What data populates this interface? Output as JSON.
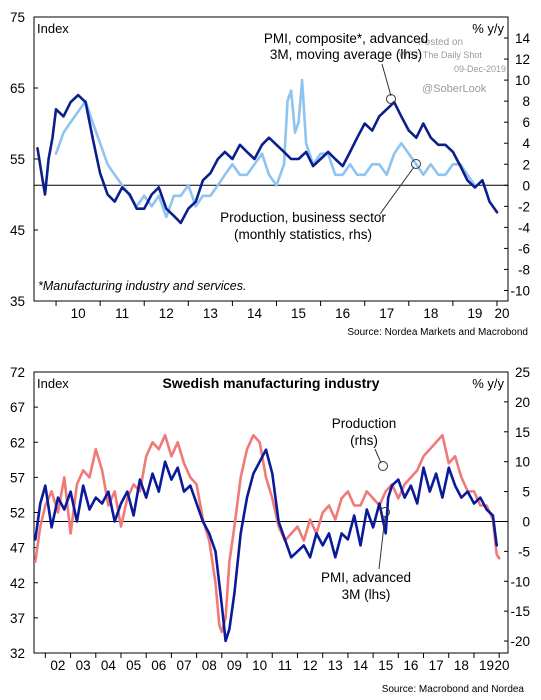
{
  "watermark": {
    "line1": "Posted on",
    "line2": "WSJ: The Daily Shot",
    "line3": "09-Dec-2019",
    "handle": "@SoberLook"
  },
  "chart_data": [
    {
      "type": "line",
      "title": "",
      "left_axis_label": "Index",
      "right_axis_label": "% y/y",
      "ylim_left": [
        35,
        75
      ],
      "ylim_right": [
        -11,
        16
      ],
      "left_ticks": [
        "35",
        "45",
        "55",
        "65",
        "75"
      ],
      "right_ticks": [
        "-10",
        "-8",
        "-6",
        "-4",
        "-2",
        "0",
        "2",
        "4",
        "6",
        "8",
        "10",
        "12",
        "14"
      ],
      "x_ticks": [
        "10",
        "11",
        "12",
        "13",
        "14",
        "15",
        "16",
        "17",
        "18",
        "19",
        "20"
      ],
      "x_range": [
        2009.5,
        2020.25
      ],
      "grid": false,
      "zero_line_rhs": 0,
      "note": "*Manufacturing industry and services.",
      "source": "Source: Nordea Markets and Macrobond",
      "annotations": [
        "PMI, composite*, advanced",
        "3M, moving average (lhs)",
        "Production, business sector",
        "(monthly statistics, rhs)"
      ],
      "series": [
        {
          "name": "PMI, composite*, advanced 3M, moving average (lhs)",
          "axis": "left",
          "color": "#0b1f8c",
          "x": [
            2009.58,
            2009.67,
            2009.75,
            2009.83,
            2009.92,
            2010.0,
            2010.17,
            2010.33,
            2010.5,
            2010.67,
            2010.83,
            2011.0,
            2011.17,
            2011.33,
            2011.5,
            2011.67,
            2011.83,
            2012.0,
            2012.17,
            2012.33,
            2012.5,
            2012.67,
            2012.83,
            2013.0,
            2013.17,
            2013.33,
            2013.5,
            2013.67,
            2013.83,
            2014.0,
            2014.17,
            2014.33,
            2014.5,
            2014.67,
            2014.83,
            2015.0,
            2015.17,
            2015.33,
            2015.5,
            2015.67,
            2015.83,
            2016.0,
            2016.17,
            2016.33,
            2016.5,
            2016.67,
            2016.83,
            2017.0,
            2017.17,
            2017.33,
            2017.5,
            2017.67,
            2017.83,
            2018.0,
            2018.17,
            2018.33,
            2018.5,
            2018.67,
            2018.83,
            2019.0,
            2019.17,
            2019.33,
            2019.5,
            2019.67,
            2019.83,
            2020.0
          ],
          "values": [
            56.5,
            53,
            50,
            55,
            58,
            62,
            61,
            63,
            64,
            63,
            58,
            53,
            50,
            49,
            51,
            50,
            48,
            48,
            50,
            51,
            48,
            47,
            46,
            48,
            49,
            52,
            53,
            55,
            56,
            55,
            57,
            56,
            55,
            57,
            58,
            57,
            56,
            55,
            55,
            56,
            54,
            55,
            56,
            55,
            54,
            56,
            58,
            60,
            59,
            61,
            62,
            63,
            61,
            59,
            58,
            60,
            58,
            57,
            57,
            56,
            54,
            52,
            51,
            52,
            49,
            47.5
          ]
        },
        {
          "name": "Production, business sector (monthly statistics, rhs)",
          "axis": "right",
          "color": "#8fc3f0",
          "x": [
            2010.0,
            2010.17,
            2010.33,
            2010.5,
            2010.67,
            2010.83,
            2011.0,
            2011.17,
            2011.33,
            2011.5,
            2011.67,
            2011.83,
            2012.0,
            2012.17,
            2012.33,
            2012.5,
            2012.67,
            2012.83,
            2013.0,
            2013.17,
            2013.33,
            2013.5,
            2013.67,
            2013.83,
            2014.0,
            2014.17,
            2014.33,
            2014.5,
            2014.67,
            2014.83,
            2015.0,
            2015.17,
            2015.25,
            2015.33,
            2015.42,
            2015.5,
            2015.58,
            2015.67,
            2015.83,
            2016.0,
            2016.17,
            2016.33,
            2016.5,
            2016.67,
            2016.83,
            2017.0,
            2017.17,
            2017.33,
            2017.5,
            2017.67,
            2017.83,
            2018.0,
            2018.17,
            2018.33,
            2018.5,
            2018.67,
            2018.83,
            2019.0,
            2019.17,
            2019.33,
            2019.5
          ],
          "values": [
            3,
            5,
            6,
            7,
            8,
            6,
            4,
            2,
            1,
            0,
            -1,
            -2,
            -1,
            -2,
            -1,
            -3,
            -1,
            -1,
            0,
            -2,
            -1,
            -1,
            0,
            1,
            2,
            1,
            1,
            2,
            3,
            1,
            0,
            2,
            8,
            9,
            5,
            6,
            10,
            4,
            2,
            3,
            3,
            1,
            1,
            2,
            1,
            1,
            2,
            2,
            1,
            3,
            4,
            3,
            2,
            1,
            2,
            1,
            1,
            2,
            2,
            1,
            0
          ]
        }
      ]
    },
    {
      "type": "line",
      "title": "Swedish manufacturing industry",
      "left_axis_label": "Index",
      "right_axis_label": "% y/y",
      "ylim_left": [
        32,
        72
      ],
      "ylim_right": [
        -22,
        25
      ],
      "left_ticks": [
        "32",
        "37",
        "42",
        "47",
        "52",
        "57",
        "62",
        "67",
        "72"
      ],
      "right_ticks": [
        "-20",
        "-15",
        "-10",
        "-5",
        "0",
        "5",
        "10",
        "15",
        "20",
        "25"
      ],
      "x_ticks": [
        "02",
        "03",
        "04",
        "05",
        "06",
        "07",
        "08",
        "09",
        "10",
        "11",
        "12",
        "13",
        "14",
        "15",
        "16",
        "17",
        "18",
        "19",
        "20"
      ],
      "x_range": [
        2001.55,
        2020.35
      ],
      "grid": false,
      "zero_line_rhs": 0,
      "source": "Source: Macrobond and Nordea",
      "annotations": [
        "Production",
        "(rhs)",
        "PMI, advanced",
        "3M (lhs)"
      ],
      "series": [
        {
          "name": "Production (rhs)",
          "axis": "right",
          "color": "#0a1a9a",
          "x": [
            2001.6,
            2001.8,
            2002.0,
            2002.25,
            2002.5,
            2002.75,
            2003.0,
            2003.25,
            2003.5,
            2003.75,
            2004.0,
            2004.25,
            2004.5,
            2004.75,
            2005.0,
            2005.25,
            2005.5,
            2005.75,
            2006.0,
            2006.25,
            2006.5,
            2006.75,
            2007.0,
            2007.25,
            2007.5,
            2007.75,
            2008.0,
            2008.25,
            2008.5,
            2008.75,
            2009.0,
            2009.15,
            2009.3,
            2009.5,
            2009.75,
            2010.0,
            2010.25,
            2010.5,
            2010.75,
            2011.0,
            2011.25,
            2011.5,
            2011.75,
            2012.0,
            2012.25,
            2012.5,
            2012.75,
            2013.0,
            2013.25,
            2013.5,
            2013.75,
            2014.0,
            2014.25,
            2014.5,
            2014.75,
            2015.0,
            2015.25,
            2015.5,
            2015.6,
            2015.75,
            2016.0,
            2016.25,
            2016.5,
            2016.75,
            2017.0,
            2017.25,
            2017.5,
            2017.75,
            2018.0,
            2018.25,
            2018.5,
            2018.75,
            2019.0,
            2019.25,
            2019.5,
            2019.75,
            2019.9
          ],
          "values": [
            -3,
            3,
            6,
            -1,
            4,
            2,
            5,
            0,
            6,
            2,
            4,
            3,
            5,
            0,
            3,
            5,
            1,
            7,
            4,
            8,
            5,
            10,
            7,
            9,
            5,
            6,
            3,
            0,
            -2,
            -5,
            -14,
            -20,
            -18,
            -12,
            -2,
            4,
            8,
            10,
            12,
            8,
            0,
            -3,
            -6,
            -5,
            -4,
            -6,
            -2,
            -4,
            -2,
            -6,
            -2,
            -3,
            1,
            -4,
            2,
            -1,
            3,
            -2,
            4,
            6,
            7,
            4,
            6,
            3,
            9,
            5,
            8,
            4,
            9,
            6,
            4,
            5,
            3,
            4,
            2,
            1,
            -4
          ]
        },
        {
          "name": "PMI, advanced 3M (lhs)",
          "axis": "left",
          "color": "#f07a78",
          "x": [
            2001.6,
            2001.8,
            2002.0,
            2002.25,
            2002.5,
            2002.75,
            2003.0,
            2003.25,
            2003.5,
            2003.75,
            2004.0,
            2004.25,
            2004.5,
            2004.75,
            2005.0,
            2005.25,
            2005.5,
            2005.75,
            2006.0,
            2006.25,
            2006.5,
            2006.75,
            2007.0,
            2007.25,
            2007.5,
            2007.75,
            2008.0,
            2008.25,
            2008.5,
            2008.75,
            2008.9,
            2009.0,
            2009.15,
            2009.3,
            2009.5,
            2009.75,
            2010.0,
            2010.25,
            2010.5,
            2010.75,
            2011.0,
            2011.25,
            2011.5,
            2011.75,
            2012.0,
            2012.25,
            2012.5,
            2012.75,
            2013.0,
            2013.25,
            2013.5,
            2013.75,
            2014.0,
            2014.25,
            2014.5,
            2014.75,
            2015.0,
            2015.25,
            2015.5,
            2015.75,
            2016.0,
            2016.25,
            2016.5,
            2016.75,
            2017.0,
            2017.25,
            2017.5,
            2017.75,
            2018.0,
            2018.25,
            2018.5,
            2018.75,
            2019.0,
            2019.25,
            2019.5,
            2019.75,
            2019.9,
            2020.0
          ],
          "values": [
            45,
            50,
            53,
            55,
            52,
            57,
            49,
            56,
            58,
            57,
            61,
            58,
            53,
            55,
            50,
            54,
            56,
            55,
            60,
            62,
            61,
            63,
            60,
            62,
            59,
            57,
            56,
            51,
            48,
            42,
            36,
            35,
            37,
            45,
            50,
            57,
            61,
            63,
            62,
            57,
            54,
            50,
            48,
            49,
            50,
            48,
            51,
            49,
            52,
            53,
            51,
            54,
            55,
            53,
            53,
            55,
            54,
            53,
            55,
            56,
            54,
            56,
            57,
            58,
            60,
            61,
            62,
            63,
            59,
            60,
            57,
            55,
            55,
            53,
            53,
            51,
            46,
            45.5
          ]
        }
      ]
    }
  ]
}
